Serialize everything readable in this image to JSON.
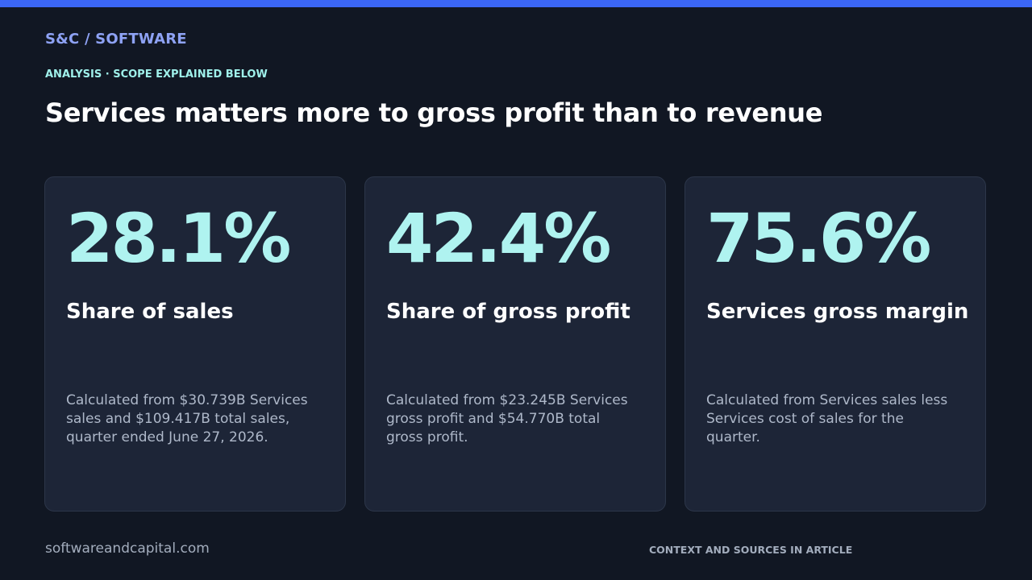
{
  "header": {
    "brand": "S&C / SOFTWARE",
    "eyebrow": "ANALYSIS · SCOPE EXPLAINED BELOW",
    "headline": "Services matters more to gross profit than to revenue"
  },
  "cards": [
    {
      "metric": "28.1%",
      "label": "Share of sales",
      "description": "Calculated from $30.739B Services sales and $109.417B total sales, quarter ended June 27, 2026."
    },
    {
      "metric": "42.4%",
      "label": "Share of gross profit",
      "description": "Calculated from $23.245B Services gross profit and $54.770B total gross profit."
    },
    {
      "metric": "75.6%",
      "label": "Services gross margin",
      "description": "Calculated from Services sales less Services cost of sales for the quarter."
    }
  ],
  "footer": {
    "url": "softwareandcapital.com",
    "note": "CONTEXT AND SOURCES IN ARTICLE"
  },
  "colors": {
    "background": "#111723",
    "accent_bar": "#3b66f5",
    "brand": "#8ea2f4",
    "eyebrow": "#9ff0ea",
    "metric": "#aff3f0",
    "card": "#1d2537"
  }
}
